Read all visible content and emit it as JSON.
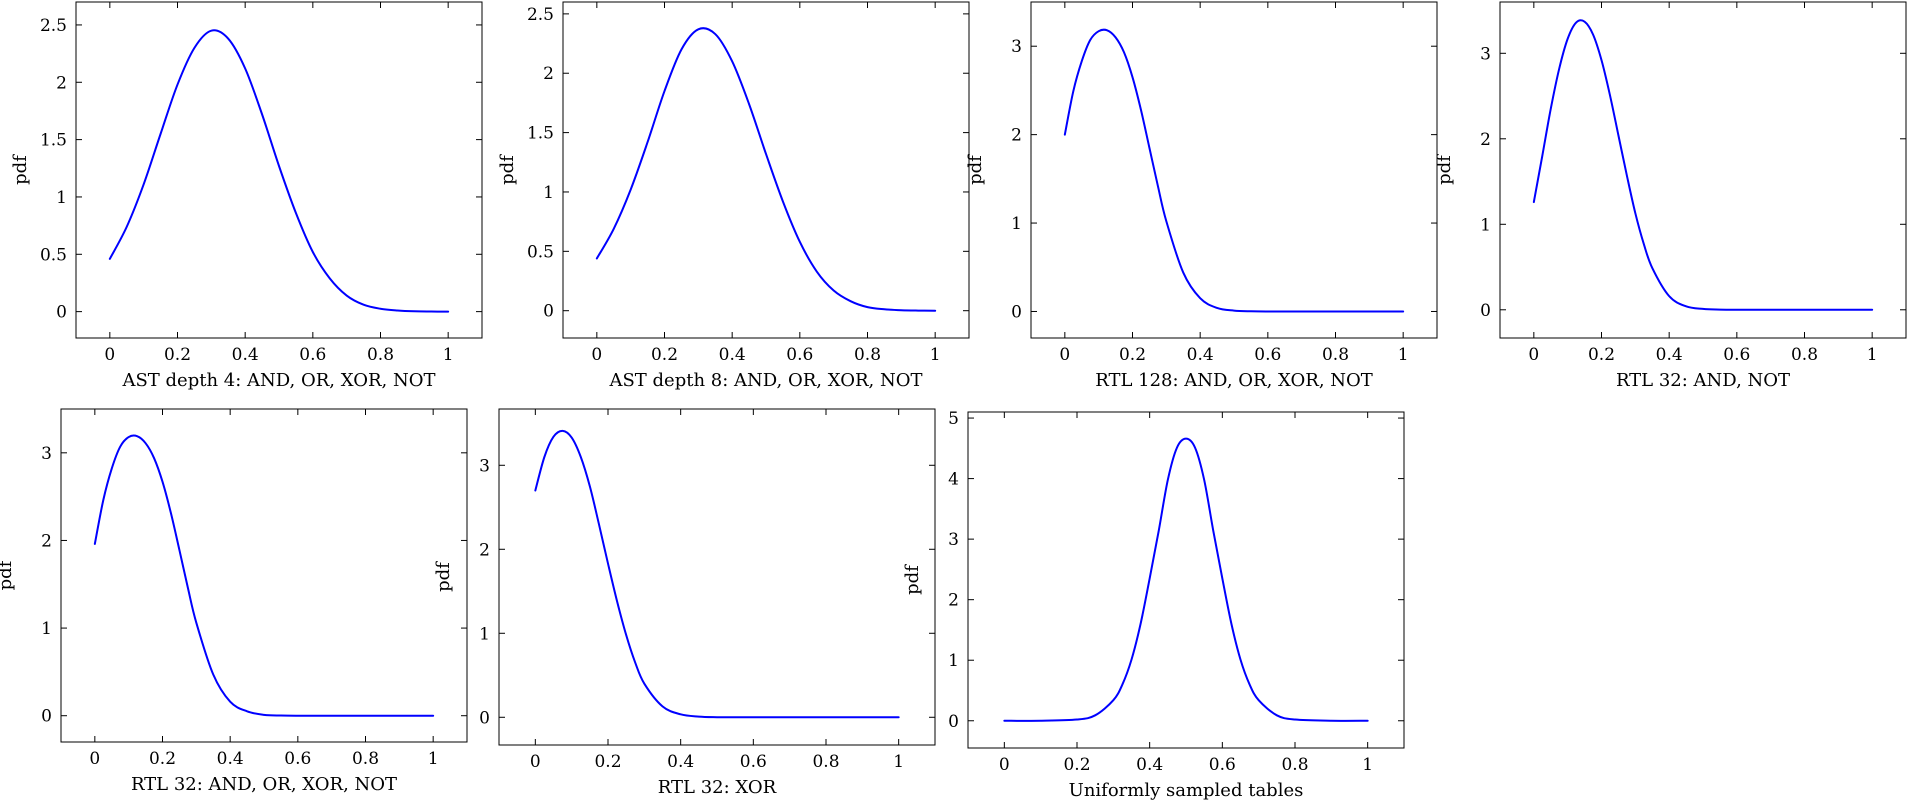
{
  "figure": {
    "line_color": "#0000ff"
  },
  "chart_data": [
    {
      "type": "line",
      "xlabel": "AST depth 4: AND, OR, XOR, NOT",
      "ylabel": "pdf",
      "xlim": [
        -0.1,
        1.1
      ],
      "ylim": [
        -0.23,
        2.7
      ],
      "xticks": [
        "0",
        "0.2",
        "0.4",
        "0.6",
        "0.8",
        "1"
      ],
      "yticks": [
        "0",
        "0.5",
        "1",
        "1.5",
        "2",
        "2.5"
      ],
      "series": [
        {
          "x": [
            0,
            0.05,
            0.1,
            0.15,
            0.2,
            0.25,
            0.3,
            0.35,
            0.4,
            0.45,
            0.5,
            0.55,
            0.6,
            0.65,
            0.7,
            0.75,
            0.8,
            0.85,
            0.9,
            0.95,
            1
          ],
          "y": [
            0.46,
            0.74,
            1.11,
            1.55,
            1.98,
            2.3,
            2.45,
            2.38,
            2.12,
            1.72,
            1.27,
            0.86,
            0.52,
            0.29,
            0.14,
            0.06,
            0.025,
            0.01,
            0.003,
            0.001,
            0
          ]
        }
      ]
    },
    {
      "type": "line",
      "xlabel": "AST depth 8: AND, OR, XOR, NOT",
      "ylabel": "pdf",
      "xlim": [
        -0.1,
        1.1
      ],
      "ylim": [
        -0.23,
        2.6
      ],
      "xticks": [
        "0",
        "0.2",
        "0.4",
        "0.6",
        "0.8",
        "1"
      ],
      "yticks": [
        "0",
        "0.5",
        "1",
        "1.5",
        "2",
        "2.5"
      ],
      "series": [
        {
          "x": [
            0,
            0.05,
            0.1,
            0.15,
            0.2,
            0.25,
            0.3,
            0.35,
            0.4,
            0.45,
            0.5,
            0.55,
            0.6,
            0.65,
            0.7,
            0.75,
            0.8,
            0.85,
            0.9,
            0.95,
            1
          ],
          "y": [
            0.44,
            0.69,
            1.02,
            1.42,
            1.85,
            2.2,
            2.37,
            2.33,
            2.1,
            1.74,
            1.32,
            0.92,
            0.58,
            0.33,
            0.17,
            0.08,
            0.03,
            0.012,
            0.004,
            0.001,
            0
          ]
        }
      ]
    },
    {
      "type": "line",
      "xlabel": "RTL 128: AND, OR, XOR, NOT",
      "ylabel": "pdf",
      "xlim": [
        -0.1,
        1.1
      ],
      "ylim": [
        -0.3,
        3.5
      ],
      "xticks": [
        "0",
        "0.2",
        "0.4",
        "0.6",
        "0.8",
        "1"
      ],
      "yticks": [
        "0",
        "1",
        "2",
        "3"
      ],
      "series": [
        {
          "x": [
            0,
            0.025,
            0.05,
            0.075,
            0.1,
            0.125,
            0.15,
            0.175,
            0.2,
            0.225,
            0.25,
            0.275,
            0.3,
            0.35,
            0.4,
            0.45,
            0.5,
            0.55,
            0.6,
            0.7,
            0.8,
            0.9,
            1
          ],
          "y": [
            2.0,
            2.49,
            2.83,
            3.07,
            3.17,
            3.18,
            3.1,
            2.93,
            2.65,
            2.28,
            1.85,
            1.42,
            1.02,
            0.44,
            0.15,
            0.04,
            0.01,
            0.002,
            0,
            0,
            0,
            0,
            0
          ]
        }
      ]
    },
    {
      "type": "line",
      "xlabel": "RTL 32: AND, NOT",
      "ylabel": "pdf",
      "xlim": [
        -0.1,
        1.1
      ],
      "ylim": [
        -0.33,
        3.6
      ],
      "xticks": [
        "0",
        "0.2",
        "0.4",
        "0.6",
        "0.8",
        "1"
      ],
      "yticks": [
        "0",
        "1",
        "2",
        "3"
      ],
      "series": [
        {
          "x": [
            0,
            0.025,
            0.05,
            0.075,
            0.1,
            0.125,
            0.15,
            0.175,
            0.2,
            0.225,
            0.25,
            0.275,
            0.3,
            0.325,
            0.35,
            0.4,
            0.45,
            0.5,
            0.55,
            0.6,
            0.7,
            0.8,
            0.9,
            1
          ],
          "y": [
            1.26,
            1.8,
            2.35,
            2.82,
            3.17,
            3.36,
            3.37,
            3.22,
            2.92,
            2.51,
            2.04,
            1.57,
            1.13,
            0.77,
            0.49,
            0.16,
            0.04,
            0.01,
            0.002,
            0,
            0,
            0,
            0,
            0
          ]
        }
      ]
    },
    {
      "type": "line",
      "xlabel": "RTL 32: AND, OR, XOR, NOT",
      "ylabel": "pdf",
      "xlim": [
        -0.1,
        1.1
      ],
      "ylim": [
        -0.3,
        3.5
      ],
      "xticks": [
        "0",
        "0.2",
        "0.4",
        "0.6",
        "0.8",
        "1"
      ],
      "yticks": [
        "0",
        "1",
        "2",
        "3"
      ],
      "series": [
        {
          "x": [
            0,
            0.025,
            0.05,
            0.075,
            0.1,
            0.125,
            0.15,
            0.175,
            0.2,
            0.225,
            0.25,
            0.275,
            0.3,
            0.35,
            0.4,
            0.45,
            0.5,
            0.55,
            0.6,
            0.7,
            0.8,
            0.9,
            1
          ],
          "y": [
            1.96,
            2.46,
            2.82,
            3.07,
            3.18,
            3.19,
            3.11,
            2.94,
            2.67,
            2.31,
            1.89,
            1.46,
            1.06,
            0.47,
            0.16,
            0.05,
            0.01,
            0.002,
            0,
            0,
            0,
            0,
            0
          ]
        }
      ]
    },
    {
      "type": "line",
      "xlabel": "RTL 32: XOR",
      "ylabel": "pdf",
      "xlim": [
        -0.1,
        1.1
      ],
      "ylim": [
        -0.33,
        3.67
      ],
      "xticks": [
        "0",
        "0.2",
        "0.4",
        "0.6",
        "0.8",
        "1"
      ],
      "yticks": [
        "0",
        "1",
        "2",
        "3"
      ],
      "series": [
        {
          "x": [
            0,
            0.025,
            0.05,
            0.075,
            0.1,
            0.125,
            0.15,
            0.175,
            0.2,
            0.225,
            0.25,
            0.275,
            0.3,
            0.35,
            0.4,
            0.45,
            0.5,
            0.55,
            0.6,
            0.7,
            0.8,
            0.9,
            1
          ],
          "y": [
            2.7,
            3.1,
            3.34,
            3.41,
            3.33,
            3.1,
            2.75,
            2.3,
            1.83,
            1.38,
            0.98,
            0.65,
            0.4,
            0.13,
            0.035,
            0.008,
            0.001,
            0,
            0,
            0,
            0,
            0,
            0
          ]
        }
      ]
    },
    {
      "type": "line",
      "xlabel": "Uniformly sampled tables",
      "ylabel": "pdf",
      "xlim": [
        -0.1,
        1.1
      ],
      "ylim": [
        -0.45,
        5.1
      ],
      "xticks": [
        "0",
        "0.2",
        "0.4",
        "0.6",
        "0.8",
        "1"
      ],
      "yticks": [
        "0",
        "1",
        "2",
        "3",
        "4",
        "5"
      ],
      "series": [
        {
          "x": [
            0,
            0.1,
            0.2,
            0.25,
            0.3,
            0.325,
            0.35,
            0.375,
            0.4,
            0.425,
            0.45,
            0.475,
            0.5,
            0.525,
            0.55,
            0.575,
            0.6,
            0.625,
            0.65,
            0.675,
            0.7,
            0.75,
            0.8,
            0.9,
            1
          ],
          "y": [
            0,
            0,
            0.02,
            0.09,
            0.34,
            0.6,
            1.01,
            1.6,
            2.35,
            3.14,
            3.98,
            4.51,
            4.66,
            4.51,
            3.98,
            3.14,
            2.35,
            1.6,
            1.01,
            0.6,
            0.34,
            0.09,
            0.02,
            0,
            0
          ]
        }
      ]
    }
  ]
}
